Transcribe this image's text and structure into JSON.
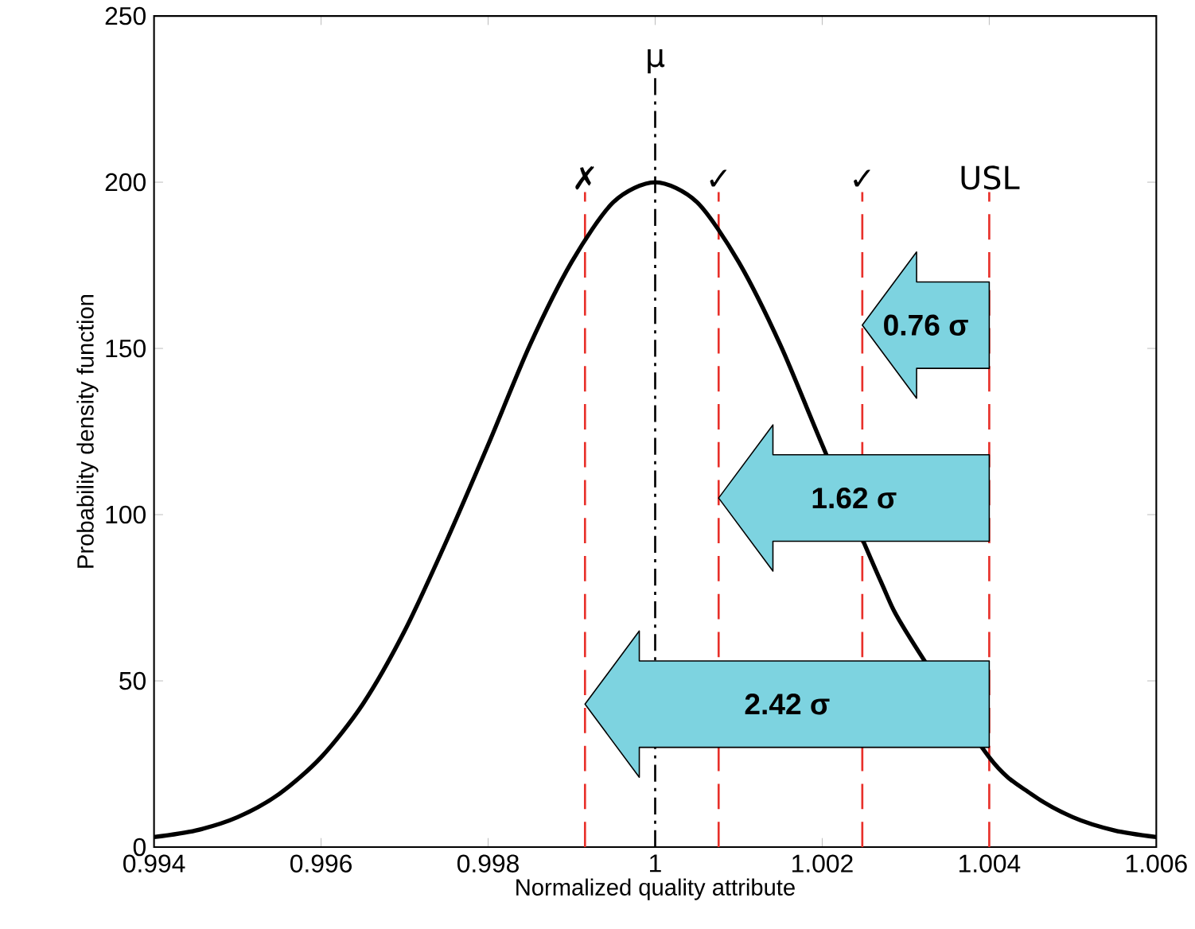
{
  "chart_data": {
    "type": "line",
    "xlabel": "Normalized quality attribute",
    "ylabel": "Probability density function",
    "xlim": [
      0.994,
      1.006
    ],
    "ylim": [
      0,
      250
    ],
    "xticks": [
      {
        "value": 0.994,
        "label": "0.994"
      },
      {
        "value": 0.996,
        "label": "0.996"
      },
      {
        "value": 0.998,
        "label": "0.998"
      },
      {
        "value": 1,
        "label": "1"
      },
      {
        "value": 1.002,
        "label": "1.002"
      },
      {
        "value": 1.004,
        "label": "1.004"
      },
      {
        "value": 1.006,
        "label": "1.006"
      }
    ],
    "yticks": [
      0,
      50,
      100,
      150,
      200,
      250
    ],
    "series": [
      {
        "color": "#000000",
        "x": [
          0.994,
          0.9945,
          0.995,
          0.9955,
          0.996,
          0.9965,
          0.997,
          0.9975,
          0.998,
          0.9985,
          0.999,
          0.9995,
          1,
          1.0005,
          1.001,
          1.0015,
          1.002,
          1.0027,
          1.003,
          1.004,
          1.0045,
          1.005,
          1.0055,
          1.006
        ],
        "values": [
          3,
          5,
          9,
          16,
          27,
          43,
          65,
          92,
          121,
          151,
          176,
          194,
          200,
          194,
          176,
          151,
          121,
          80,
          65,
          27,
          16,
          9,
          5,
          3
        ]
      }
    ],
    "ref_lines": [
      {
        "axis": "x",
        "value": 1,
        "label": "μ",
        "color": "#000000",
        "line_style": "dashdot"
      },
      {
        "axis": "x",
        "value": 0.99916,
        "label": "✗",
        "color": "#e8302a",
        "line_style": "dashed"
      },
      {
        "axis": "x",
        "value": 1.00076,
        "label": "✓",
        "color": "#e8302a",
        "line_style": "dashed"
      },
      {
        "axis": "x",
        "value": 1.00248,
        "label": "✓",
        "color": "#e8302a",
        "line_style": "dashed"
      },
      {
        "axis": "x",
        "value": 1.004,
        "label": "USL",
        "color": "#e8302a",
        "line_style": "dashed"
      }
    ],
    "annotations": [
      "0.76 σ",
      "1.62 σ",
      "2.42 σ"
    ]
  }
}
